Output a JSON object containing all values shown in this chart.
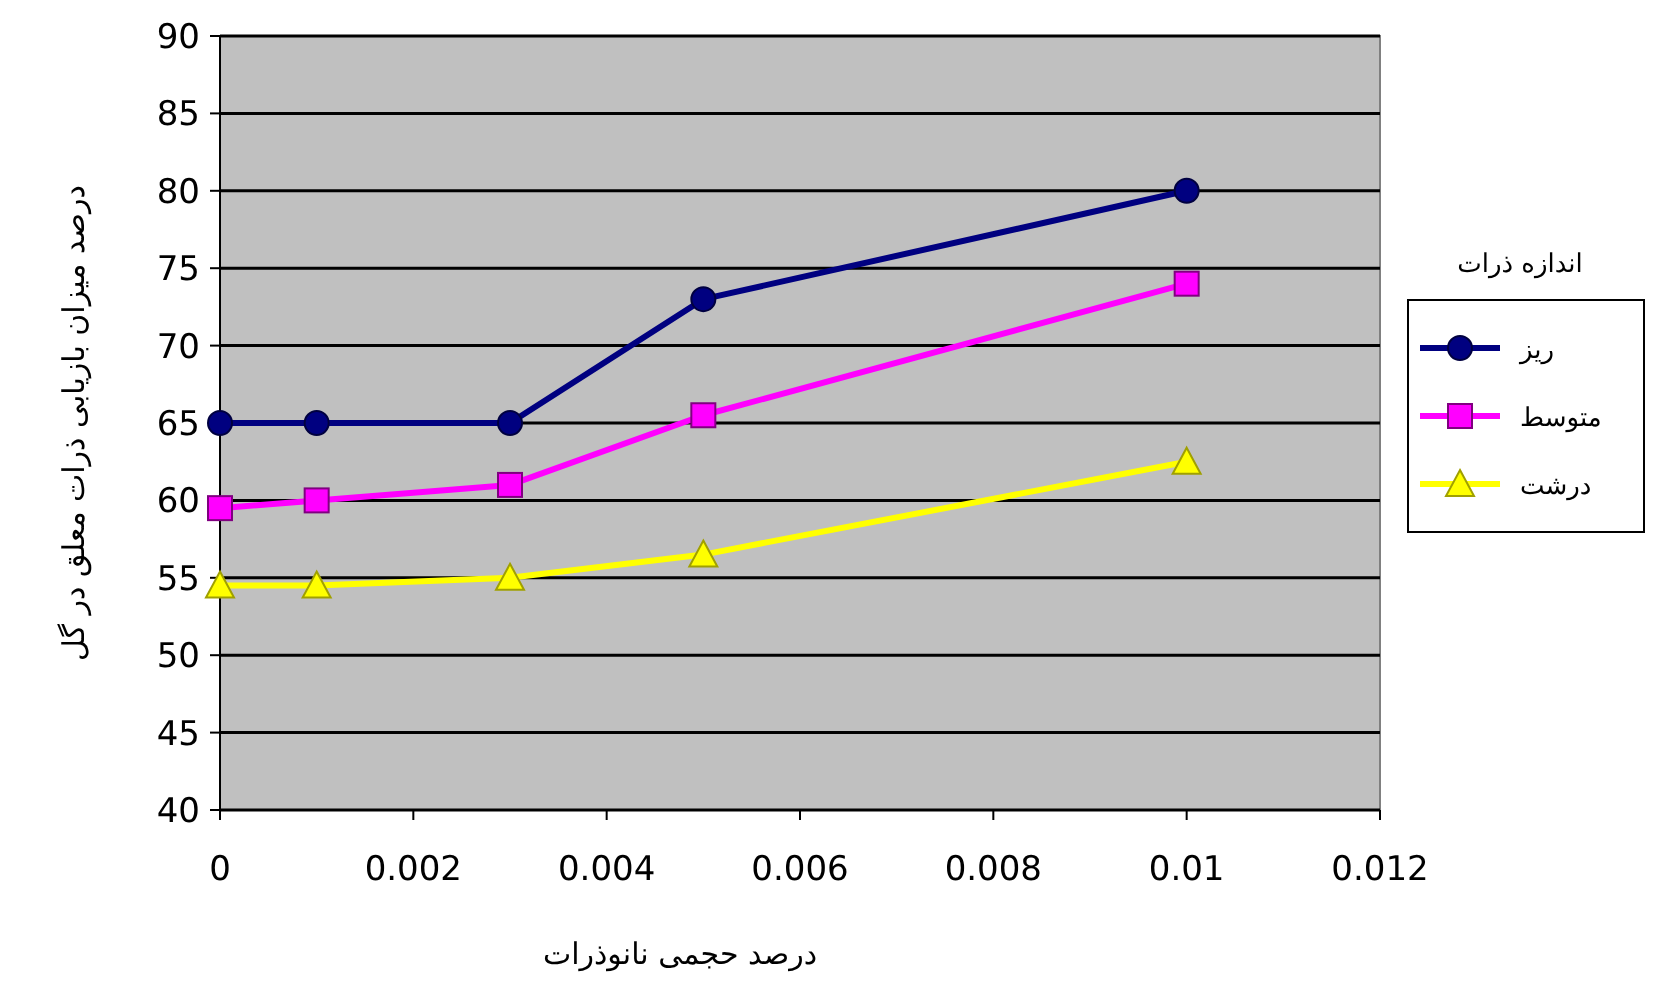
{
  "chart_data": {
    "type": "line",
    "xlabel": "درصد حجمی نانوذرات",
    "ylabel": "درصد میزان بازیابی ذرات معلق در گل",
    "legend_title": "اندازه ذرات",
    "x": [
      0,
      0.001,
      0.003,
      0.005,
      0.01
    ],
    "series": [
      {
        "name": "ریز",
        "color": "#000080",
        "marker": "circle",
        "values": [
          65,
          65,
          65,
          73,
          80
        ]
      },
      {
        "name": "متوسط",
        "color": "#ff00ff",
        "marker": "square",
        "values": [
          59.5,
          60,
          61,
          65.5,
          74
        ]
      },
      {
        "name": "درشت",
        "color": "#ffff00",
        "marker": "triangle",
        "values": [
          54.5,
          54.5,
          55,
          56.5,
          62.5
        ]
      }
    ],
    "xlim": [
      0,
      0.012
    ],
    "xticks": [
      0,
      0.002,
      0.004,
      0.006,
      0.008,
      0.01,
      0.012
    ],
    "ylim": [
      40,
      90
    ],
    "yticks": [
      40,
      45,
      50,
      55,
      60,
      65,
      70,
      75,
      80,
      85,
      90
    ],
    "grid": "y",
    "legend": "right",
    "line_style": "solid"
  }
}
